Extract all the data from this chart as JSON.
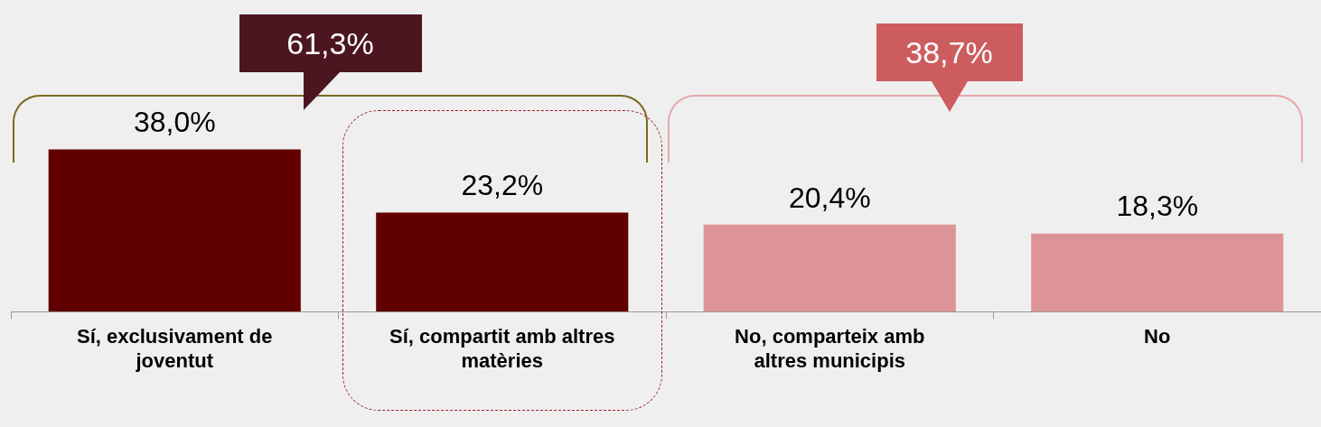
{
  "chart_data": {
    "type": "bar",
    "categories": [
      "Sí, exclusivament de joventut",
      "Sí, compartit amb altres matèries",
      "No, comparteix amb altres municipis",
      "No"
    ],
    "values": [
      38.0,
      23.2,
      20.4,
      18.3
    ],
    "value_labels": [
      "38,0%",
      "23,2%",
      "20,4%",
      "18,3%"
    ],
    "colors": [
      "#600000",
      "#600000",
      "#dc9497",
      "#dc9497"
    ],
    "annotations": [
      "61,3%",
      "38,7%"
    ],
    "legend": false,
    "grid": false
  }
}
